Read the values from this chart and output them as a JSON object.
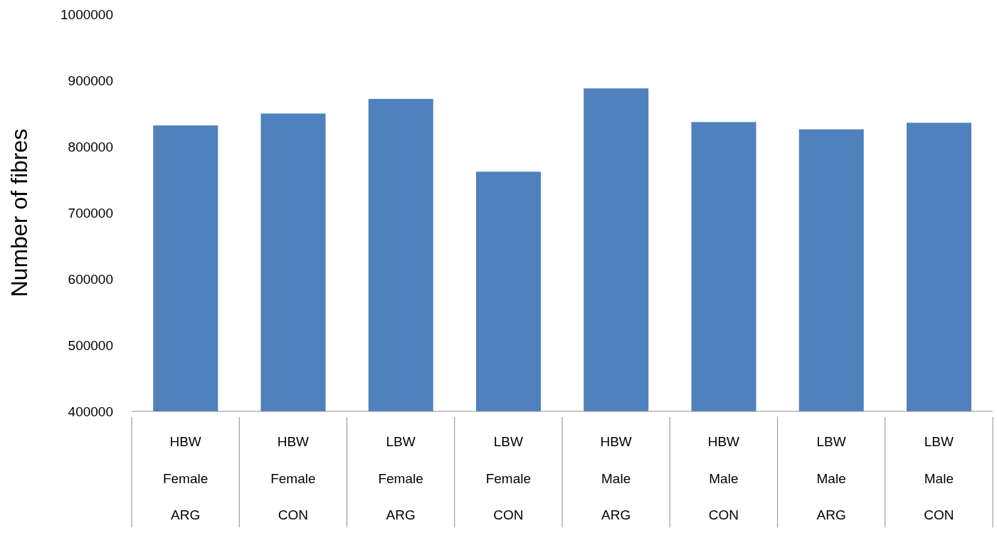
{
  "chart_data": {
    "type": "bar",
    "ylabel": "Number of fibres",
    "categories": [
      "HBW\nFemale\nARG",
      "HBW\nFemale\nCON",
      "LBW\nFemale\nARG",
      "LBW\nFemale\nCON",
      "HBW\nMale\nARG",
      "HBW\nMale\nCON",
      "LBW\nMale\nARG",
      "LBW\nMale\nCON"
    ],
    "values": [
      832000,
      850000,
      872000,
      762000,
      888000,
      837000,
      826000,
      836000
    ],
    "color": "#4f81bd",
    "ylim": [
      400000,
      1000000
    ],
    "yticks": [
      400000,
      500000,
      600000,
      700000,
      800000,
      900000,
      1000000
    ],
    "grid": false,
    "legend": false
  }
}
